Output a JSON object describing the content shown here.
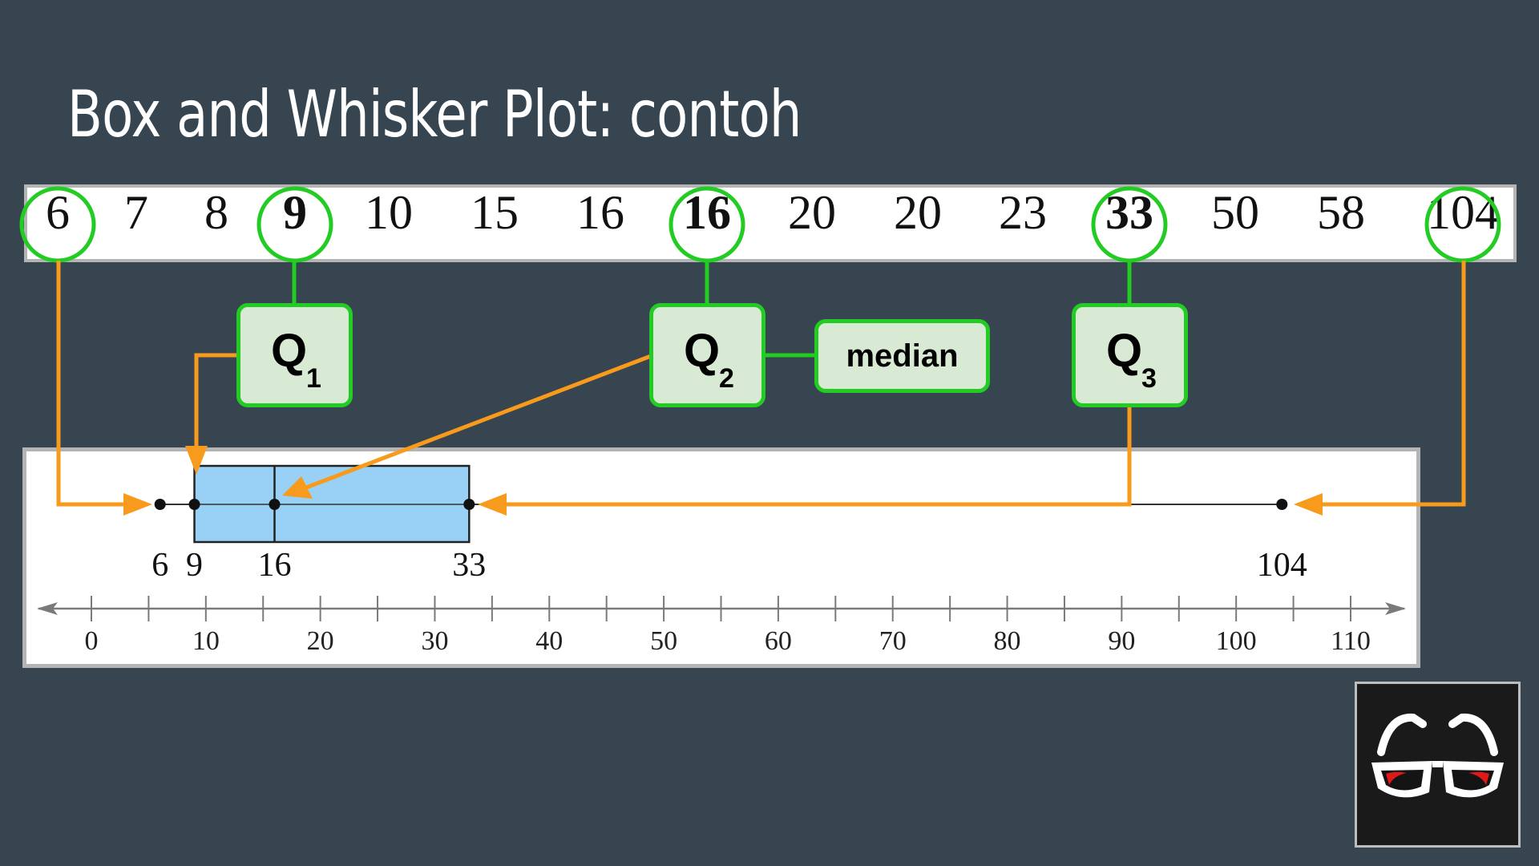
{
  "title": "Box and Whisker Plot: contoh",
  "data_strip": [
    {
      "label": "6",
      "highlighted": true,
      "bold": false
    },
    {
      "label": "7",
      "highlighted": false,
      "bold": false
    },
    {
      "label": "8",
      "highlighted": false,
      "bold": false
    },
    {
      "label": "9",
      "highlighted": true,
      "bold": true
    },
    {
      "label": "10",
      "highlighted": false,
      "bold": false
    },
    {
      "label": "15",
      "highlighted": false,
      "bold": false
    },
    {
      "label": "16",
      "highlighted": false,
      "bold": false
    },
    {
      "label": "16",
      "highlighted": true,
      "bold": true
    },
    {
      "label": "20",
      "highlighted": false,
      "bold": false
    },
    {
      "label": "20",
      "highlighted": false,
      "bold": false
    },
    {
      "label": "23",
      "highlighted": false,
      "bold": false
    },
    {
      "label": "33",
      "highlighted": true,
      "bold": true
    },
    {
      "label": "50",
      "highlighted": false,
      "bold": false
    },
    {
      "label": "58",
      "highlighted": false,
      "bold": false
    },
    {
      "label": "104",
      "highlighted": true,
      "bold": false
    }
  ],
  "quartiles": {
    "q1": {
      "letter": "Q",
      "sub": "1"
    },
    "q2": {
      "letter": "Q",
      "sub": "2"
    },
    "q3": {
      "letter": "Q",
      "sub": "3"
    },
    "median_label": "median"
  },
  "chart_data": {
    "type": "box",
    "min": 6,
    "q1": 9,
    "median": 16,
    "q3": 33,
    "max": 104,
    "value_labels": [
      "6",
      "9",
      "16",
      "33",
      "104"
    ],
    "xlim": [
      0,
      110
    ],
    "ticks": [
      0,
      10,
      20,
      30,
      40,
      50,
      60,
      70,
      80,
      90,
      100,
      110
    ],
    "tick_labels": [
      "0",
      "10",
      "20",
      "30",
      "40",
      "50",
      "60",
      "70",
      "80",
      "90",
      "100",
      "110"
    ]
  },
  "colors": {
    "background": "#36454f",
    "highlight": "#22cc22",
    "arrow": "#f89a1c",
    "box_fill": "#99d0f5",
    "quartile_fill": "#d8ead3"
  },
  "logo_icon": "eyeglasses-icon"
}
